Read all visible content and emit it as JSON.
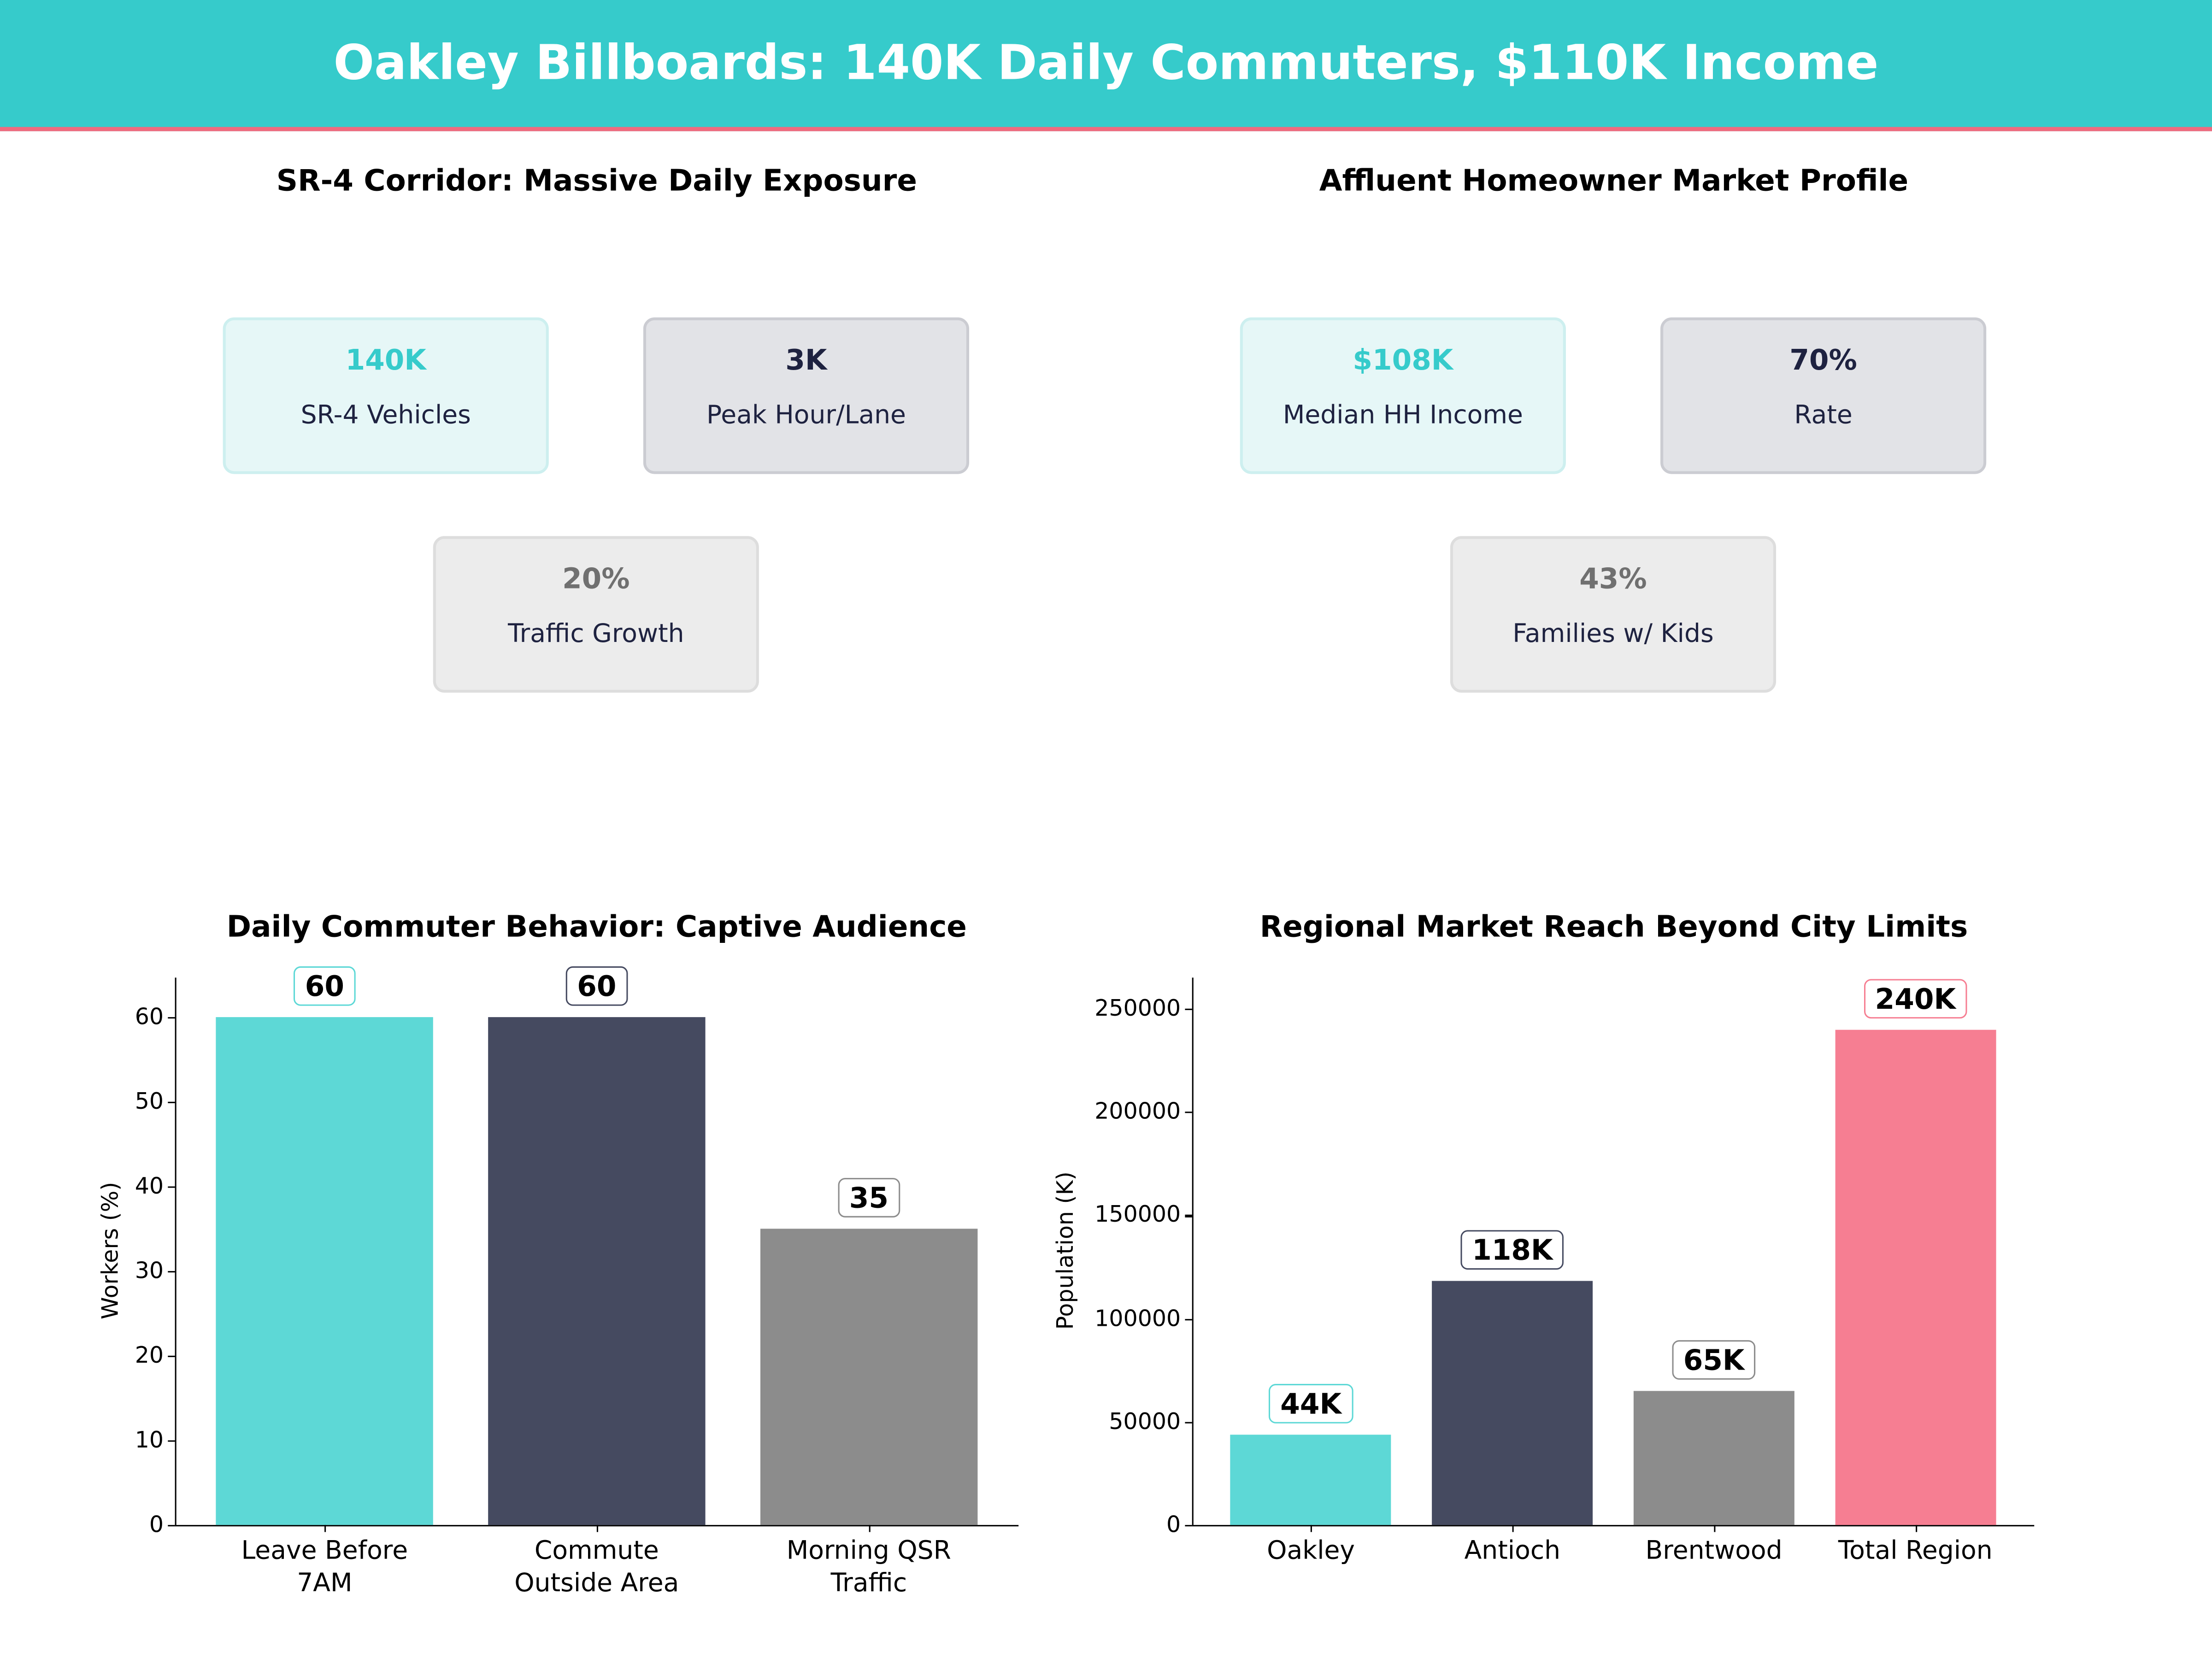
{
  "header": {
    "title": "Oakley Billboards: 140K Daily Commuters, $110K Income",
    "bg_color": "#36CBCB",
    "accent_line_color": "#F06A7E"
  },
  "corridor": {
    "title": "SR-4 Corridor: Massive Daily Exposure",
    "cards": [
      {
        "value": "140K",
        "label": "SR-4 Vehicles"
      },
      {
        "value": "3K",
        "label": "Peak Hour/Lane"
      },
      {
        "value": "20%",
        "label": "Traffic Growth"
      }
    ]
  },
  "market": {
    "title": "Affluent Homeowner Market Profile",
    "cards": [
      {
        "value": "$108K",
        "label": "Median HH Income"
      },
      {
        "value": "70%",
        "label": "Rate"
      },
      {
        "value": "43%",
        "label": "Families w/ Kids"
      }
    ]
  },
  "chart_data": [
    {
      "type": "bar",
      "title": "Daily Commuter Behavior: Captive Audience",
      "xlabel": "",
      "ylabel": "Workers (%)",
      "categories": [
        "Leave Before\n7AM",
        "Commute\nOutside Area",
        "Morning QSR\nTraffic"
      ],
      "values": [
        60,
        60,
        35
      ],
      "data_labels": [
        "60",
        "60",
        "35"
      ],
      "colors": [
        "#5DD8D6",
        "#454A60",
        "#8C8C8C"
      ],
      "label_border_colors": [
        "#5DD8D6",
        "#454A60",
        "#8C8C8C"
      ],
      "ylim": [
        0,
        64.7
      ],
      "yticks": [
        0,
        10,
        20,
        30,
        40,
        50,
        60
      ],
      "grid": false
    },
    {
      "type": "bar",
      "title": "Regional Market Reach Beyond City Limits",
      "xlabel": "",
      "ylabel": "Population (K)",
      "categories": [
        "Oakley",
        "Antioch",
        "Brentwood",
        "Total Region"
      ],
      "values": [
        44000,
        118000,
        65000,
        240000
      ],
      "data_labels": [
        "44K",
        "118K",
        "65K",
        "240K"
      ],
      "colors": [
        "#5DD8D6",
        "#454A60",
        "#8C8C8C",
        "#F67E92"
      ],
      "label_border_colors": [
        "#5DD8D6",
        "#454A60",
        "#8C8C8C",
        "#F67E92"
      ],
      "ylim": [
        0,
        265000
      ],
      "yticks": [
        0,
        50000,
        100000,
        150000,
        200000,
        250000
      ],
      "grid": false
    }
  ]
}
